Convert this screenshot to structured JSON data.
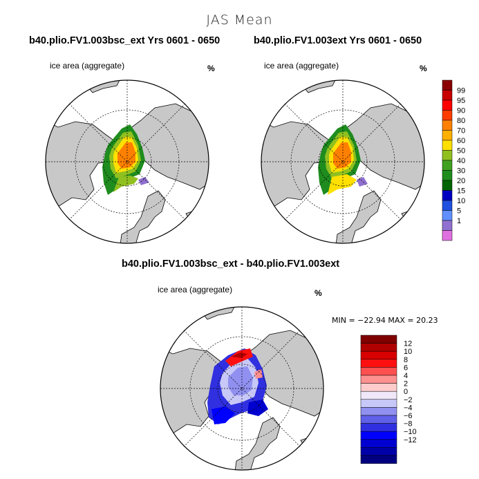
{
  "main_title": "JAS Mean",
  "panels": [
    {
      "title": "b40.plio.FV1.003bsc_ext  Yrs 0601 - 0650",
      "subtitle": "ice area  (aggregate)",
      "units": "%"
    },
    {
      "title": "b40.plio.FV1.003ext  Yrs 0601 - 0650",
      "subtitle": "ice area  (aggregate)",
      "units": "%"
    },
    {
      "title": "b40.plio.FV1.003bsc_ext - b40.plio.FV1.003ext",
      "subtitle": "ice area  (aggregate)",
      "units": "%"
    }
  ],
  "minmax": "MIN = −22.94 MAX =  20.23",
  "legend_top": {
    "labels": [
      "99",
      "95",
      "90",
      "80",
      "70",
      "60",
      "50",
      "40",
      "30",
      "20",
      "15",
      "10",
      "5",
      "1"
    ],
    "colors": [
      "#8b0000",
      "#c80000",
      "#ff0000",
      "#ff3d00",
      "#ff8000",
      "#ffb000",
      "#ffe000",
      "#90c020",
      "#40a020",
      "#1e8c1e",
      "#006400",
      "#0000c0",
      "#2050e0",
      "#6090ff",
      "#9070d0",
      "#e070e0"
    ]
  },
  "legend_diff": {
    "labels": [
      "12",
      "10",
      "8",
      "6",
      "4",
      "2",
      "0",
      "−2",
      "−4",
      "−6",
      "−8",
      "−10",
      "−12"
    ],
    "colors": [
      "#800000",
      "#b00000",
      "#d80000",
      "#ff1010",
      "#ff5050",
      "#ff9090",
      "#ffcccc",
      "#f0e8f8",
      "#c8c8f8",
      "#9090f0",
      "#6060e8",
      "#3030e0",
      "#0000ff",
      "#0000d0",
      "#0000a8",
      "#000080"
    ]
  }
}
